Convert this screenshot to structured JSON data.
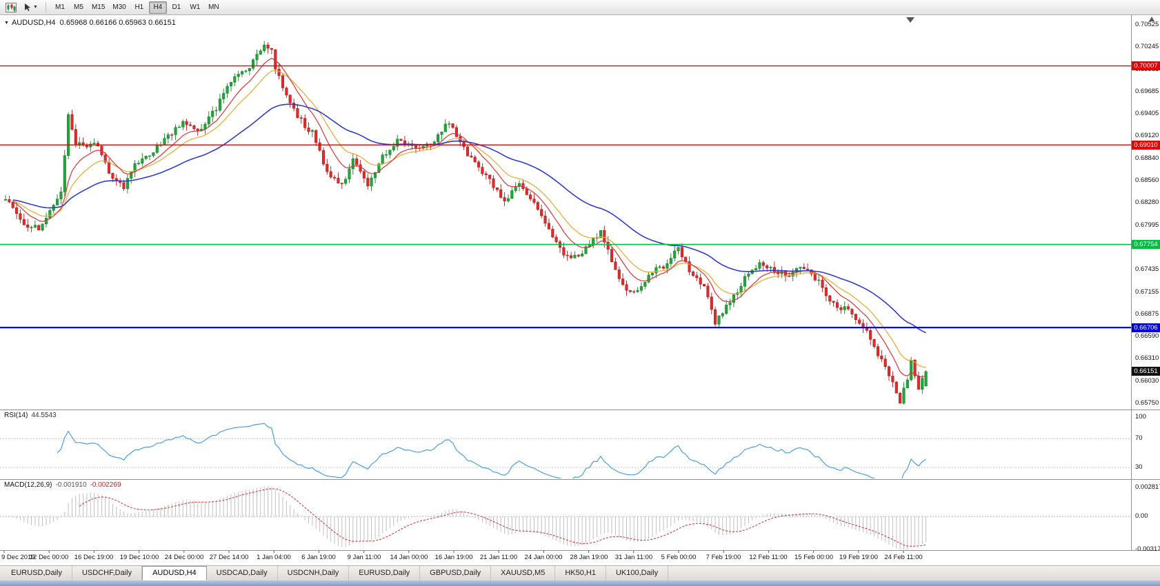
{
  "toolbar": {
    "timeframes": [
      "M1",
      "M5",
      "M15",
      "M30",
      "H1",
      "H4",
      "D1",
      "W1",
      "MN"
    ],
    "active_timeframe": "H4"
  },
  "chart": {
    "header": {
      "symbol_tf": "AUDUSD,H4",
      "ohlc": "0.65968 0.66166 0.65963 0.66151"
    }
  },
  "chart_data": {
    "type": "candlestick",
    "symbol": "AUDUSD",
    "timeframe": "H4",
    "last_candle": {
      "open": 0.65968,
      "high": 0.66166,
      "low": 0.65963,
      "close": 0.66151
    },
    "num_candles": 250,
    "up_color": "#22a53a",
    "up_border": "#117a26",
    "down_color": "#dd2c2c",
    "down_border": "#a81414",
    "close_path_anchors": [
      [
        0,
        0.683
      ],
      [
        2,
        0.6822
      ],
      [
        5,
        0.68
      ],
      [
        9,
        0.6795
      ],
      [
        12,
        0.6818
      ],
      [
        15,
        0.684
      ],
      [
        17,
        0.6938
      ],
      [
        19,
        0.6905
      ],
      [
        22,
        0.6898
      ],
      [
        24,
        0.6906
      ],
      [
        26,
        0.689
      ],
      [
        28,
        0.6862
      ],
      [
        30,
        0.6858
      ],
      [
        32,
        0.6848
      ],
      [
        35,
        0.6874
      ],
      [
        39,
        0.689
      ],
      [
        42,
        0.6904
      ],
      [
        45,
        0.6916
      ],
      [
        48,
        0.693
      ],
      [
        51,
        0.6922
      ],
      [
        53,
        0.692
      ],
      [
        57,
        0.6948
      ],
      [
        60,
        0.6972
      ],
      [
        62,
        0.6986
      ],
      [
        66,
        0.7
      ],
      [
        70,
        0.7028
      ],
      [
        72,
        0.7018
      ],
      [
        73,
        0.7
      ],
      [
        76,
        0.6962
      ],
      [
        79,
        0.6938
      ],
      [
        81,
        0.6925
      ],
      [
        83,
        0.6916
      ],
      [
        87,
        0.6866
      ],
      [
        91,
        0.685
      ],
      [
        94,
        0.688
      ],
      [
        96,
        0.687
      ],
      [
        98,
        0.6852
      ],
      [
        100,
        0.6868
      ],
      [
        102,
        0.6886
      ],
      [
        106,
        0.6906
      ],
      [
        109,
        0.6902
      ],
      [
        111,
        0.6898
      ],
      [
        114,
        0.6902
      ],
      [
        116,
        0.6906
      ],
      [
        120,
        0.693
      ],
      [
        123,
        0.6902
      ],
      [
        127,
        0.6876
      ],
      [
        131,
        0.6856
      ],
      [
        135,
        0.683
      ],
      [
        139,
        0.6852
      ],
      [
        143,
        0.683
      ],
      [
        147,
        0.6795
      ],
      [
        151,
        0.6762
      ],
      [
        155,
        0.6758
      ],
      [
        159,
        0.6782
      ],
      [
        161,
        0.679
      ],
      [
        163,
        0.6766
      ],
      [
        167,
        0.6722
      ],
      [
        171,
        0.6716
      ],
      [
        175,
        0.6742
      ],
      [
        179,
        0.6748
      ],
      [
        182,
        0.6772
      ],
      [
        185,
        0.6742
      ],
      [
        189,
        0.6722
      ],
      [
        192,
        0.6678
      ],
      [
        196,
        0.6702
      ],
      [
        200,
        0.6732
      ],
      [
        204,
        0.6752
      ],
      [
        208,
        0.6742
      ],
      [
        212,
        0.6738
      ],
      [
        216,
        0.6748
      ],
      [
        220,
        0.6728
      ],
      [
        224,
        0.67
      ],
      [
        228,
        0.6692
      ],
      [
        232,
        0.6672
      ],
      [
        236,
        0.6638
      ],
      [
        240,
        0.66
      ],
      [
        242,
        0.6578
      ],
      [
        244,
        0.6605
      ],
      [
        245,
        0.6628
      ],
      [
        247,
        0.6592
      ],
      [
        249,
        0.66151
      ]
    ],
    "price_axis_ticks": [
      "0.70525",
      "0.70245",
      "0.69965",
      "0.69685",
      "0.69405",
      "0.69120",
      "0.68840",
      "0.68560",
      "0.68280",
      "0.67995",
      "0.67715",
      "0.67435",
      "0.67155",
      "0.66875",
      "0.66590",
      "0.66310",
      "0.66030",
      "0.65750"
    ],
    "horizontal_lines": [
      {
        "price": 0.70007,
        "label": "0.70007",
        "color": "#e80000",
        "width": 1.4
      },
      {
        "price": 0.6901,
        "label": "0.69010",
        "color": "#e80000",
        "width": 1.4
      },
      {
        "price": 0.67754,
        "label": "0.67754",
        "color": "#00bf40",
        "width": 1.6
      },
      {
        "price": 0.66706,
        "label": "0.66706",
        "color": "#0000e8",
        "width": 2.2
      }
    ],
    "current_price_label": {
      "text": "0.66151",
      "price": 0.66151,
      "color": "#111111"
    },
    "moving_averages": [
      {
        "name": "ma-medium",
        "period": 16,
        "color": "#e8a82a"
      },
      {
        "name": "ma-fast",
        "period": 9,
        "color": "#e03131"
      },
      {
        "name": "ma-slow",
        "period": 45,
        "color": "#2d3bd0"
      }
    ],
    "time_axis_labels": [
      "9 Dec 2019",
      "12 Dec 00:00",
      "16 Dec 19:00",
      "19 Dec 10:00",
      "24 Dec 00:00",
      "27 Dec 14:00",
      "1 Jan 04:00",
      "6 Jan 19:00",
      "9 Jan 11:00",
      "14 Jan 00:00",
      "16 Jan 19:00",
      "21 Jan 11:00",
      "24 Jan 00:00",
      "28 Jan 19:00",
      "31 Jan 11:00",
      "5 Feb 00:00",
      "7 Feb 19:00",
      "12 Feb 11:00",
      "15 Feb 00:00",
      "19 Feb 19:00",
      "24 Feb 11:00"
    ],
    "rsi": {
      "label_text": "RSI(14)",
      "value_text": "44.5543",
      "period": 14,
      "levels": [
        "100",
        "70",
        "30"
      ],
      "level_values": [
        100,
        70,
        30
      ],
      "line_color": "#4a9fdd"
    },
    "macd": {
      "label_text": "MACD(12,26,9)",
      "value_main": "-0.001910",
      "value_signal": "-0.002269",
      "fast": 12,
      "slow": 26,
      "signal": 9,
      "axis_ticks": [
        "0.002817",
        "0.00",
        "-0.003179"
      ],
      "axis_tick_values": [
        0.002817,
        0,
        -0.003179
      ],
      "histogram_color": "#bfbfbf",
      "signal_color": "#d22a2a"
    }
  },
  "tabs": {
    "items": [
      {
        "label": "EURUSD,Daily",
        "active": false
      },
      {
        "label": "USDCHF,Daily",
        "active": false
      },
      {
        "label": "AUDUSD,H4",
        "active": true
      },
      {
        "label": "USDCAD,Daily",
        "active": false
      },
      {
        "label": "USDCNH,Daily",
        "active": false
      },
      {
        "label": "EURUSD,Daily",
        "active": false
      },
      {
        "label": "GBPUSD,Daily",
        "active": false
      },
      {
        "label": "XAUUSD,M5",
        "active": false
      },
      {
        "label": "HK50,H1",
        "active": false
      },
      {
        "label": "UK100,Daily",
        "active": false
      }
    ]
  }
}
